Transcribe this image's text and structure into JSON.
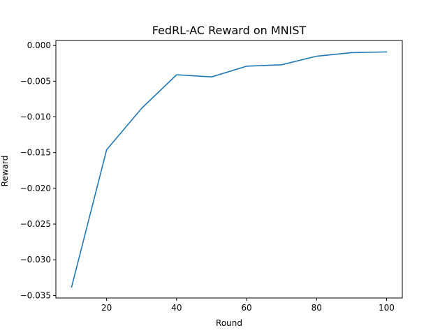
{
  "chart_data": {
    "type": "line",
    "title": "FedRL-AC Reward on MNIST",
    "xlabel": "Round",
    "ylabel": "Reward",
    "xlim": [
      5.5,
      104.5
    ],
    "ylim": [
      -0.03535,
      0.0007
    ],
    "xticks": [
      20,
      40,
      60,
      80,
      100
    ],
    "xtick_labels": [
      "20",
      "40",
      "60",
      "80",
      "100"
    ],
    "yticks": [
      0.0,
      -0.005,
      -0.01,
      -0.015,
      -0.02,
      -0.025,
      -0.03,
      -0.035
    ],
    "ytick_labels": [
      "0.000",
      "−0.005",
      "−0.010",
      "−0.015",
      "−0.020",
      "−0.025",
      "−0.030",
      "−0.035"
    ],
    "grid": false,
    "series": [
      {
        "color": "#1f77b4",
        "x": [
          10,
          20,
          30,
          40,
          50,
          60,
          70,
          80,
          90,
          100
        ],
        "y": [
          -0.0338,
          -0.0146,
          -0.0088,
          -0.0041,
          -0.0044,
          -0.0029,
          -0.0027,
          -0.0015,
          -0.001,
          -0.0009
        ]
      }
    ]
  }
}
